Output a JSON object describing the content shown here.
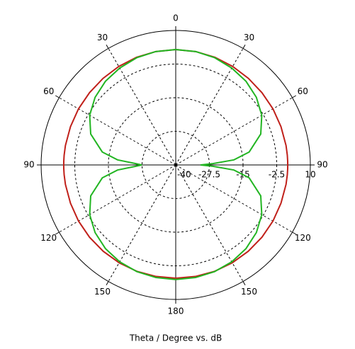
{
  "chart_data": {
    "type": "polar",
    "xlabel": "Theta / Degree vs. dB",
    "theta": [
      0,
      10,
      20,
      30,
      40,
      50,
      60,
      70,
      80,
      85,
      88,
      90,
      92,
      95,
      100,
      110,
      120,
      130,
      140,
      150,
      160,
      170,
      180,
      190,
      200,
      210,
      220,
      230,
      240,
      250,
      260,
      265,
      268,
      270,
      272,
      275,
      280,
      290,
      300,
      310,
      320,
      330,
      340,
      350
    ],
    "series": [
      {
        "color": "#c0201a",
        "values": [
          2.9,
          2.8,
          2.6,
          2.3,
          2.0,
          1.8,
          1.7,
          1.6,
          1.6,
          1.6,
          1.6,
          1.6,
          1.6,
          1.6,
          1.6,
          1.6,
          1.7,
          1.8,
          1.9,
          2.0,
          2.1,
          2.1,
          2.1,
          2.1,
          2.1,
          2.0,
          1.9,
          1.8,
          1.7,
          1.6,
          1.6,
          1.6,
          1.6,
          1.6,
          1.6,
          1.6,
          1.6,
          1.6,
          1.7,
          1.8,
          2.0,
          2.3,
          2.6,
          2.8
        ]
      },
      {
        "color": "#22b522",
        "values": [
          2.9,
          2.8,
          2.4,
          1.6,
          0.6,
          -0.9,
          -3.1,
          -6.4,
          -12.3,
          -18.3,
          -26.2,
          -30.8,
          -26.2,
          -18.3,
          -12.3,
          -6.4,
          -3.1,
          -0.9,
          0.6,
          1.6,
          2.2,
          2.5,
          2.6,
          2.5,
          2.2,
          1.6,
          0.6,
          -0.9,
          -3.1,
          -6.4,
          -12.3,
          -18.3,
          -25,
          -27.4,
          -25,
          -18.3,
          -12.3,
          -6.4,
          -3.1,
          -0.9,
          0.6,
          1.6,
          2.4,
          2.8
        ]
      }
    ],
    "rlim": [
      -40,
      10
    ],
    "rticks": [
      -40,
      -27.5,
      -15,
      -2.5,
      10
    ],
    "thetaticks": [
      0,
      30,
      60,
      90,
      120,
      150,
      180,
      {
        "value": 210,
        "label": "150"
      },
      {
        "value": 240,
        "label": "120"
      },
      {
        "value": 270,
        "label": "90"
      },
      {
        "value": 300,
        "label": "60"
      },
      {
        "value": 330,
        "label": "30"
      }
    ]
  }
}
